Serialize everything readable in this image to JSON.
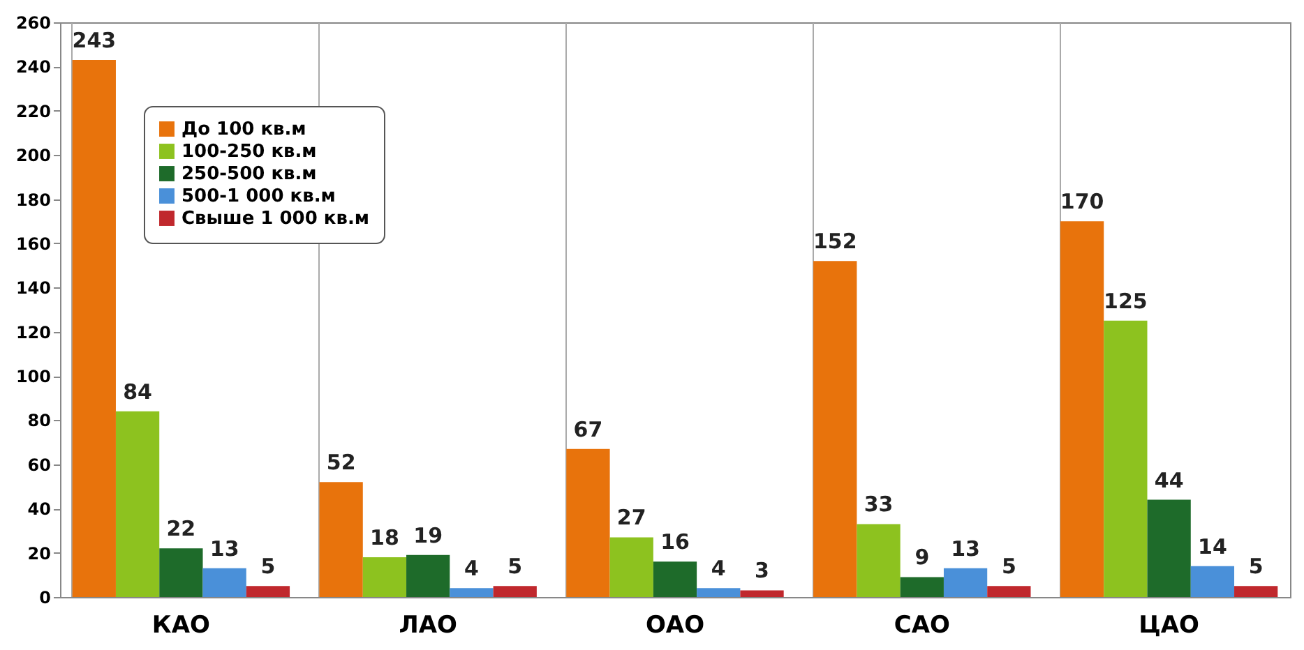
{
  "chart_data": {
    "type": "bar",
    "categories": [
      "КАО",
      "ЛАО",
      "ОАО",
      "САО",
      "ЦАО"
    ],
    "series": [
      {
        "name": "До 100 кв.м",
        "color": "#e8730c",
        "values": [
          243,
          52,
          67,
          152,
          170
        ]
      },
      {
        "name": "100-250 кв.м",
        "color": "#8dc21f",
        "values": [
          84,
          18,
          27,
          33,
          125
        ]
      },
      {
        "name": "250-500 кв.м",
        "color": "#1e6b2a",
        "values": [
          22,
          19,
          16,
          9,
          44
        ]
      },
      {
        "name": "500-1 000 кв.м",
        "color": "#4a90d9",
        "values": [
          13,
          4,
          4,
          13,
          14
        ]
      },
      {
        "name": "Свыше 1 000 кв.м",
        "color": "#c0282d",
        "values": [
          5,
          5,
          3,
          5,
          5
        ]
      }
    ],
    "ylim": [
      0,
      260
    ],
    "yticks": [
      0,
      20,
      40,
      60,
      80,
      100,
      120,
      140,
      160,
      180,
      200,
      220,
      240,
      260
    ],
    "grid": "x",
    "legend": "top left",
    "data_labels": true
  }
}
